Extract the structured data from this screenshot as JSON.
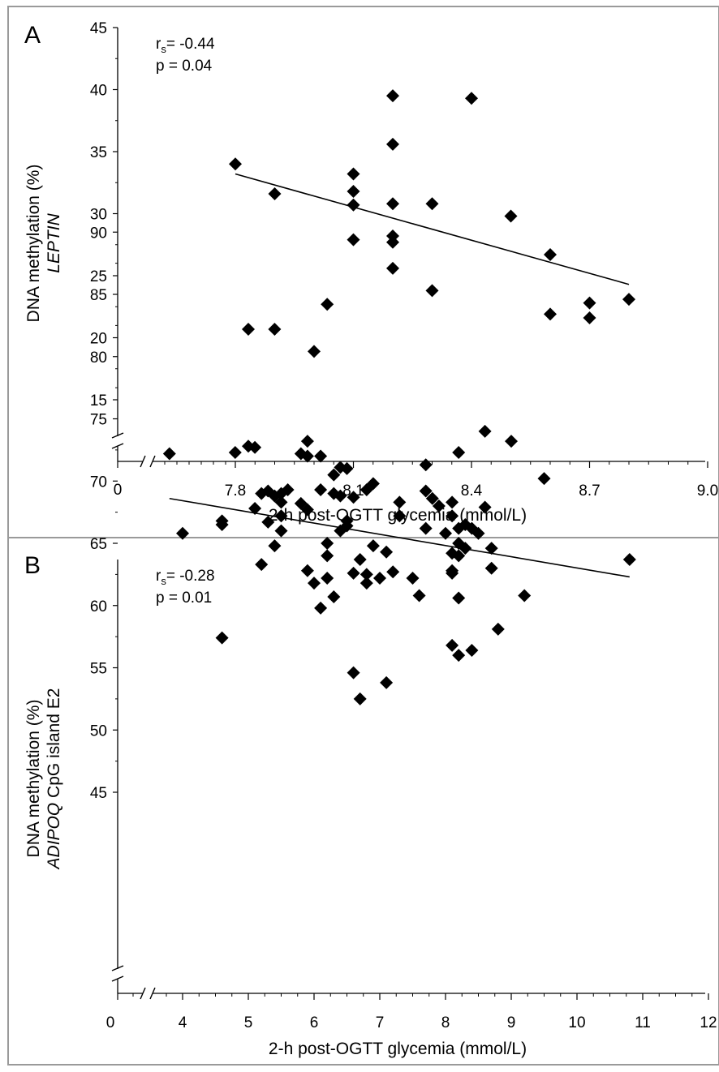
{
  "panels": [
    {
      "letter": "A",
      "stat_r_main": "r",
      "stat_r_sub": "s",
      "stat_r_value": "= -0.44",
      "stat_p": "p = 0.04",
      "ylabel_line1": "DNA methylation (%)",
      "ylabel_line2": "LEPTIN",
      "xlabel": "2-h post-OGTT glycemia (mmol/L)",
      "x_zero_label": "0",
      "x_ticks": [
        "7.8",
        "8.1",
        "8.4",
        "8.7",
        "9.0"
      ],
      "y_ticks": [
        "45",
        "40",
        "35",
        "30",
        "25",
        "20",
        "15"
      ]
    },
    {
      "letter": "B",
      "stat_r_main": "r",
      "stat_r_sub": "s",
      "stat_r_value": "= -0.28",
      "stat_p": "p = 0.01",
      "ylabel_line1": "DNA methylation (%)",
      "ylabel_line2_italic": "ADIPOQ",
      "ylabel_line2_rest": " CpG island E2",
      "xlabel": "2-h post-OGTT glycemia (mmol/L)",
      "x_zero_label": "0",
      "x_ticks": [
        "4",
        "5",
        "6",
        "7",
        "8",
        "9",
        "10",
        "11",
        "12"
      ],
      "y_ticks": [
        "90",
        "85",
        "80",
        "75",
        "70",
        "65",
        "60",
        "55",
        "50",
        "45"
      ]
    }
  ],
  "chart_data": [
    {
      "type": "scatter",
      "title": "",
      "xlabel": "2-h post-OGTT glycemia (mmol/L)",
      "ylabel": "DNA methylation (%) LEPTIN",
      "xlim": [
        7.8,
        9.0
      ],
      "ylim": [
        15,
        45
      ],
      "axis_break": true,
      "marker": "diamond",
      "color": "#000000",
      "points": [
        [
          7.8,
          34.0
        ],
        [
          7.9,
          31.6
        ],
        [
          8.0,
          18.9
        ],
        [
          8.1,
          33.2
        ],
        [
          8.1,
          31.8
        ],
        [
          8.1,
          30.7
        ],
        [
          8.1,
          27.9
        ],
        [
          8.2,
          39.5
        ],
        [
          8.2,
          35.6
        ],
        [
          8.2,
          30.8
        ],
        [
          8.2,
          28.2
        ],
        [
          8.2,
          27.7
        ],
        [
          8.2,
          25.6
        ],
        [
          8.3,
          30.8
        ],
        [
          8.3,
          23.8
        ],
        [
          8.4,
          39.3
        ],
        [
          8.5,
          29.8
        ],
        [
          8.6,
          26.7
        ],
        [
          8.6,
          21.9
        ],
        [
          8.7,
          22.8
        ],
        [
          8.7,
          21.6
        ],
        [
          8.8,
          23.1
        ]
      ],
      "trendline": {
        "x1": 7.8,
        "y1": 33.2,
        "x2": 8.8,
        "y2": 24.3
      }
    },
    {
      "type": "scatter",
      "title": "",
      "xlabel": "2-h post-OGTT glycemia (mmol/L)",
      "ylabel": "DNA methylation (%) ADIPOQ CpG island E2",
      "xlim": [
        4,
        12
      ],
      "ylim": [
        45,
        90
      ],
      "axis_break": true,
      "marker": "diamond",
      "color": "#000000",
      "points": [
        [
          3.8,
          72.2
        ],
        [
          4.0,
          65.8
        ],
        [
          4.6,
          66.8
        ],
        [
          4.6,
          66.5
        ],
        [
          4.6,
          57.4
        ],
        [
          4.8,
          72.3
        ],
        [
          5.0,
          82.2
        ],
        [
          5.0,
          72.8
        ],
        [
          5.1,
          72.7
        ],
        [
          5.1,
          67.8
        ],
        [
          5.2,
          69.0
        ],
        [
          5.2,
          63.3
        ],
        [
          5.3,
          69.2
        ],
        [
          5.3,
          66.7
        ],
        [
          5.4,
          82.2
        ],
        [
          5.4,
          68.8
        ],
        [
          5.4,
          64.8
        ],
        [
          5.5,
          69.0
        ],
        [
          5.5,
          68.3
        ],
        [
          5.5,
          67.2
        ],
        [
          5.5,
          66.0
        ],
        [
          5.6,
          69.3
        ],
        [
          5.8,
          72.2
        ],
        [
          5.8,
          68.2
        ],
        [
          5.9,
          73.2
        ],
        [
          5.9,
          72.0
        ],
        [
          5.9,
          67.7
        ],
        [
          5.9,
          62.8
        ],
        [
          6.0,
          61.8
        ],
        [
          6.1,
          72.0
        ],
        [
          6.1,
          69.3
        ],
        [
          6.1,
          59.8
        ],
        [
          6.2,
          84.2
        ],
        [
          6.2,
          65.0
        ],
        [
          6.2,
          64.0
        ],
        [
          6.2,
          62.2
        ],
        [
          6.3,
          70.5
        ],
        [
          6.3,
          69.0
        ],
        [
          6.3,
          60.7
        ],
        [
          6.4,
          71.1
        ],
        [
          6.4,
          68.8
        ],
        [
          6.4,
          66.0
        ],
        [
          6.5,
          71.0
        ],
        [
          6.5,
          66.8
        ],
        [
          6.5,
          66.4
        ],
        [
          6.6,
          68.7
        ],
        [
          6.6,
          62.6
        ],
        [
          6.6,
          54.6
        ],
        [
          6.7,
          63.7
        ],
        [
          6.7,
          52.5
        ],
        [
          6.8,
          69.3
        ],
        [
          6.8,
          62.5
        ],
        [
          6.8,
          61.8
        ],
        [
          6.9,
          69.8
        ],
        [
          6.9,
          64.8
        ],
        [
          7.0,
          62.2
        ],
        [
          7.1,
          64.3
        ],
        [
          7.1,
          53.8
        ],
        [
          7.2,
          62.7
        ],
        [
          7.3,
          68.3
        ],
        [
          7.3,
          67.2
        ],
        [
          7.5,
          62.2
        ],
        [
          7.6,
          60.8
        ],
        [
          7.7,
          71.3
        ],
        [
          7.7,
          69.2
        ],
        [
          7.7,
          66.2
        ],
        [
          7.8,
          68.6
        ],
        [
          7.9,
          68.0
        ],
        [
          8.0,
          65.8
        ],
        [
          8.1,
          68.3
        ],
        [
          8.1,
          67.2
        ],
        [
          8.1,
          64.2
        ],
        [
          8.1,
          62.8
        ],
        [
          8.1,
          62.6
        ],
        [
          8.1,
          56.8
        ],
        [
          8.2,
          72.3
        ],
        [
          8.2,
          66.2
        ],
        [
          8.2,
          65.0
        ],
        [
          8.2,
          64.0
        ],
        [
          8.2,
          60.6
        ],
        [
          8.2,
          56.0
        ],
        [
          8.3,
          66.5
        ],
        [
          8.3,
          64.6
        ],
        [
          8.4,
          66.2
        ],
        [
          8.4,
          56.4
        ],
        [
          8.5,
          65.8
        ],
        [
          8.6,
          74.0
        ],
        [
          8.6,
          67.9
        ],
        [
          8.7,
          64.6
        ],
        [
          8.7,
          63.0
        ],
        [
          8.8,
          58.1
        ],
        [
          9.0,
          73.2
        ],
        [
          9.2,
          60.8
        ],
        [
          9.5,
          70.2
        ],
        [
          10.8,
          63.7
        ]
      ],
      "trendline": {
        "x1": 3.8,
        "y1": 68.6,
        "x2": 10.8,
        "y2": 62.3
      }
    }
  ]
}
